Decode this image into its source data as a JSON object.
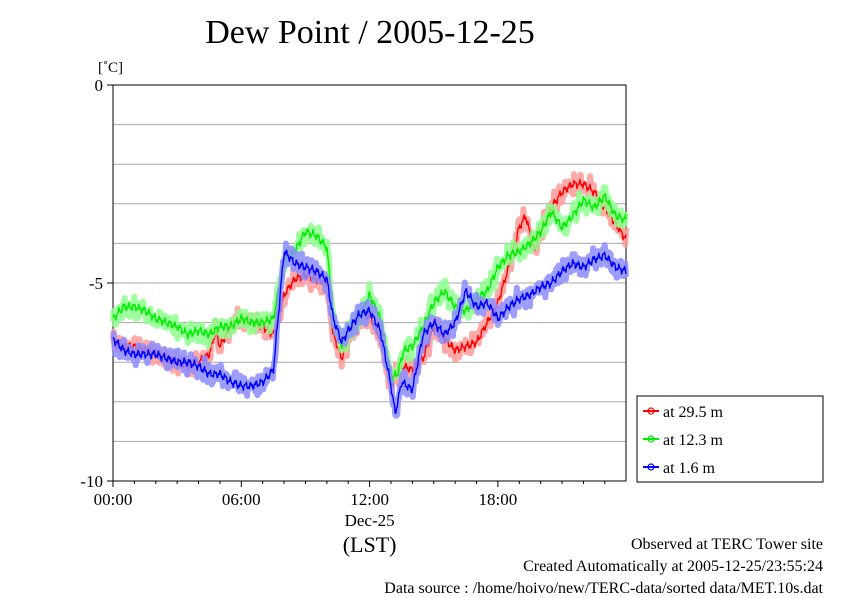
{
  "chart_data": {
    "type": "line",
    "title": "Dew Point / 2005-12-25",
    "ylabel": "[˚C]",
    "ylim": [
      -10,
      0
    ],
    "yticks": [
      0,
      -5,
      -10
    ],
    "ytick_labels": [
      "0",
      "-5",
      "-10"
    ],
    "grid": true,
    "xlim": [
      0,
      23.99
    ],
    "xticks": [
      0,
      6,
      12,
      18
    ],
    "xtick_labels": [
      "00:00",
      "06:00",
      "12:00",
      "18:00"
    ],
    "xdate_label": "Dec-25",
    "xlabel": "(LST)",
    "legend_position": "right-bottom",
    "series": [
      {
        "name": "at 29.5 m",
        "color": "#ff0000",
        "x": [
          0,
          0.5,
          1,
          1.5,
          2,
          2.5,
          3,
          3.5,
          4,
          4.5,
          4.8,
          5,
          5.3,
          5.6,
          6,
          6.5,
          7,
          7.5,
          8,
          8.5,
          9,
          9.5,
          10,
          10.3,
          10.7,
          11,
          11.5,
          12,
          12.5,
          13,
          13.3,
          13.6,
          14,
          14.5,
          15,
          15.5,
          16,
          16.5,
          17,
          17.5,
          18,
          18.5,
          19,
          19.3,
          19.7,
          20,
          20.5,
          21,
          21.5,
          22,
          22.5,
          23,
          23.5,
          23.99
        ],
        "values": [
          -6.5,
          -6.6,
          -6.6,
          -6.7,
          -6.8,
          -6.9,
          -7.0,
          -7.1,
          -7.0,
          -6.8,
          -6.2,
          -6.6,
          -6.3,
          -6.0,
          -5.9,
          -6.0,
          -6.1,
          -6.3,
          -5.3,
          -4.9,
          -4.8,
          -4.9,
          -5.0,
          -6.3,
          -6.9,
          -6.4,
          -6.0,
          -5.8,
          -6.4,
          -7.6,
          -7.3,
          -7.1,
          -7.2,
          -6.9,
          -6.1,
          -6.4,
          -6.7,
          -6.6,
          -6.5,
          -6.0,
          -5.5,
          -4.6,
          -3.6,
          -3.3,
          -4.2,
          -3.7,
          -3.1,
          -2.7,
          -2.5,
          -2.5,
          -2.7,
          -3.1,
          -3.5,
          -3.9
        ]
      },
      {
        "name": "at 12.3 m",
        "color": "#00ee00",
        "x": [
          0,
          0.5,
          1,
          1.5,
          2,
          2.5,
          3,
          3.5,
          4,
          4.5,
          5,
          5.5,
          6,
          6.5,
          7,
          7.5,
          8,
          8.5,
          9,
          9.5,
          10,
          10.3,
          10.7,
          11,
          11.5,
          12,
          12.5,
          13,
          13.3,
          13.6,
          14,
          14.5,
          15,
          15.5,
          16,
          16.5,
          17,
          17.5,
          18,
          18.5,
          19,
          19.5,
          20,
          20.5,
          21,
          21.5,
          22,
          22.5,
          23,
          23.5,
          23.99
        ],
        "values": [
          -5.9,
          -5.6,
          -5.6,
          -5.7,
          -5.9,
          -6.0,
          -6.1,
          -6.3,
          -6.2,
          -6.3,
          -6.1,
          -6.1,
          -5.9,
          -6.0,
          -6.0,
          -5.9,
          -4.4,
          -4.2,
          -3.7,
          -3.8,
          -4.1,
          -5.8,
          -6.6,
          -6.2,
          -5.9,
          -5.3,
          -5.9,
          -7.4,
          -7.3,
          -6.7,
          -6.6,
          -6.1,
          -5.5,
          -5.2,
          -5.6,
          -5.7,
          -5.4,
          -5.2,
          -4.6,
          -4.3,
          -4.2,
          -4.0,
          -3.7,
          -3.2,
          -3.6,
          -3.3,
          -2.9,
          -3.1,
          -2.8,
          -3.3,
          -3.4
        ]
      },
      {
        "name": "at 1.6 m",
        "color": "#0000ff",
        "x": [
          0,
          0.5,
          1,
          1.5,
          2,
          2.5,
          3,
          3.5,
          4,
          4.5,
          5,
          5.5,
          6,
          6.5,
          7,
          7.5,
          8,
          8.5,
          9,
          9.5,
          10,
          10.3,
          10.7,
          11,
          11.5,
          12,
          12.5,
          13,
          13.2,
          13.5,
          14,
          14.5,
          15,
          15.5,
          16,
          16.5,
          17,
          17.5,
          18,
          18.5,
          19,
          19.5,
          20,
          20.5,
          21,
          21.5,
          22,
          22.5,
          23,
          23.5,
          23.99
        ],
        "values": [
          -6.4,
          -6.7,
          -6.8,
          -6.8,
          -6.8,
          -6.9,
          -7.0,
          -7.0,
          -7.1,
          -7.3,
          -7.3,
          -7.5,
          -7.6,
          -7.6,
          -7.5,
          -7.2,
          -4.2,
          -4.5,
          -4.6,
          -4.7,
          -4.9,
          -5.9,
          -6.5,
          -6.2,
          -5.8,
          -5.7,
          -6.2,
          -7.6,
          -8.3,
          -7.5,
          -7.7,
          -6.3,
          -6.0,
          -6.3,
          -6.0,
          -5.2,
          -5.6,
          -5.5,
          -5.9,
          -5.6,
          -5.4,
          -5.3,
          -5.1,
          -5.0,
          -4.7,
          -4.5,
          -4.6,
          -4.4,
          -4.3,
          -4.6,
          -4.7
        ]
      }
    ],
    "footer_lines": [
      "Observed at TERC Tower site",
      "Created Automatically at 2005-12-25/23:55:24",
      "Data source : /home/hoivo/new/TERC-data/sorted  data/MET.10s.dat"
    ]
  }
}
